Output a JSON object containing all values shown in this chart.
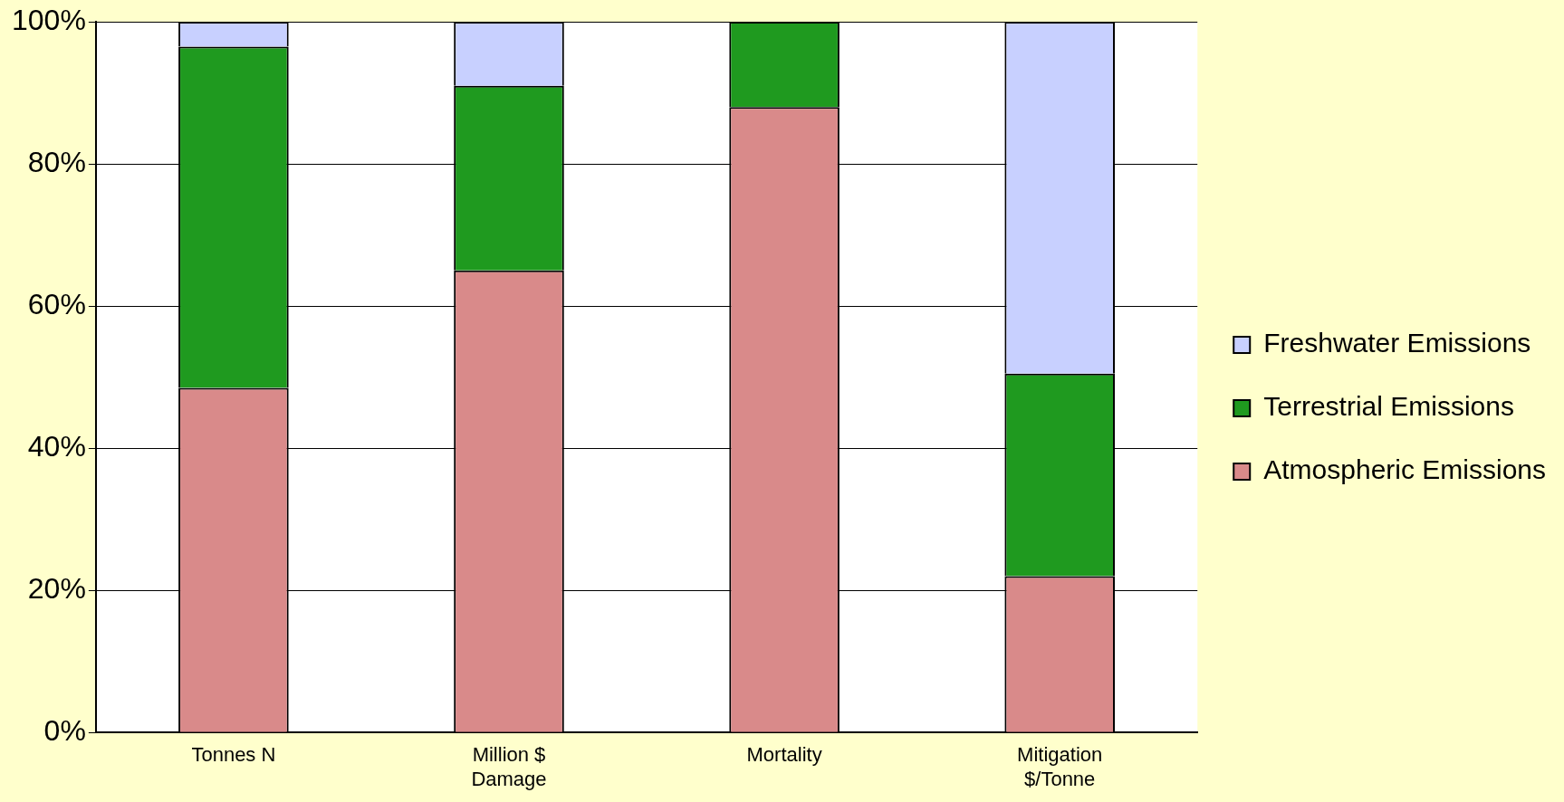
{
  "chart_data": {
    "type": "bar",
    "stacked": true,
    "categories": [
      "Tonnes N",
      "Million $\nDamage",
      "Mortality",
      "Mitigation\n$/Tonne"
    ],
    "series": [
      {
        "name": "Atmospheric Emissions",
        "color": "#d98a8a",
        "values": [
          48.5,
          65,
          88,
          22
        ]
      },
      {
        "name": "Terrestrial Emissions",
        "color": "#1f9a1f",
        "values": [
          48,
          26,
          12,
          28.5
        ]
      },
      {
        "name": "Freshwater Emissions",
        "color": "#c8d0ff",
        "values": [
          3.5,
          9,
          0,
          49.5
        ]
      }
    ],
    "ylim": [
      0,
      100
    ],
    "yticks": [
      {
        "value": 0,
        "label": "0%"
      },
      {
        "value": 20,
        "label": "20%"
      },
      {
        "value": 40,
        "label": "40%"
      },
      {
        "value": 60,
        "label": "60%"
      },
      {
        "value": 80,
        "label": "80%"
      },
      {
        "value": 100,
        "label": "100%"
      }
    ],
    "grid": "y",
    "legend": "right"
  }
}
